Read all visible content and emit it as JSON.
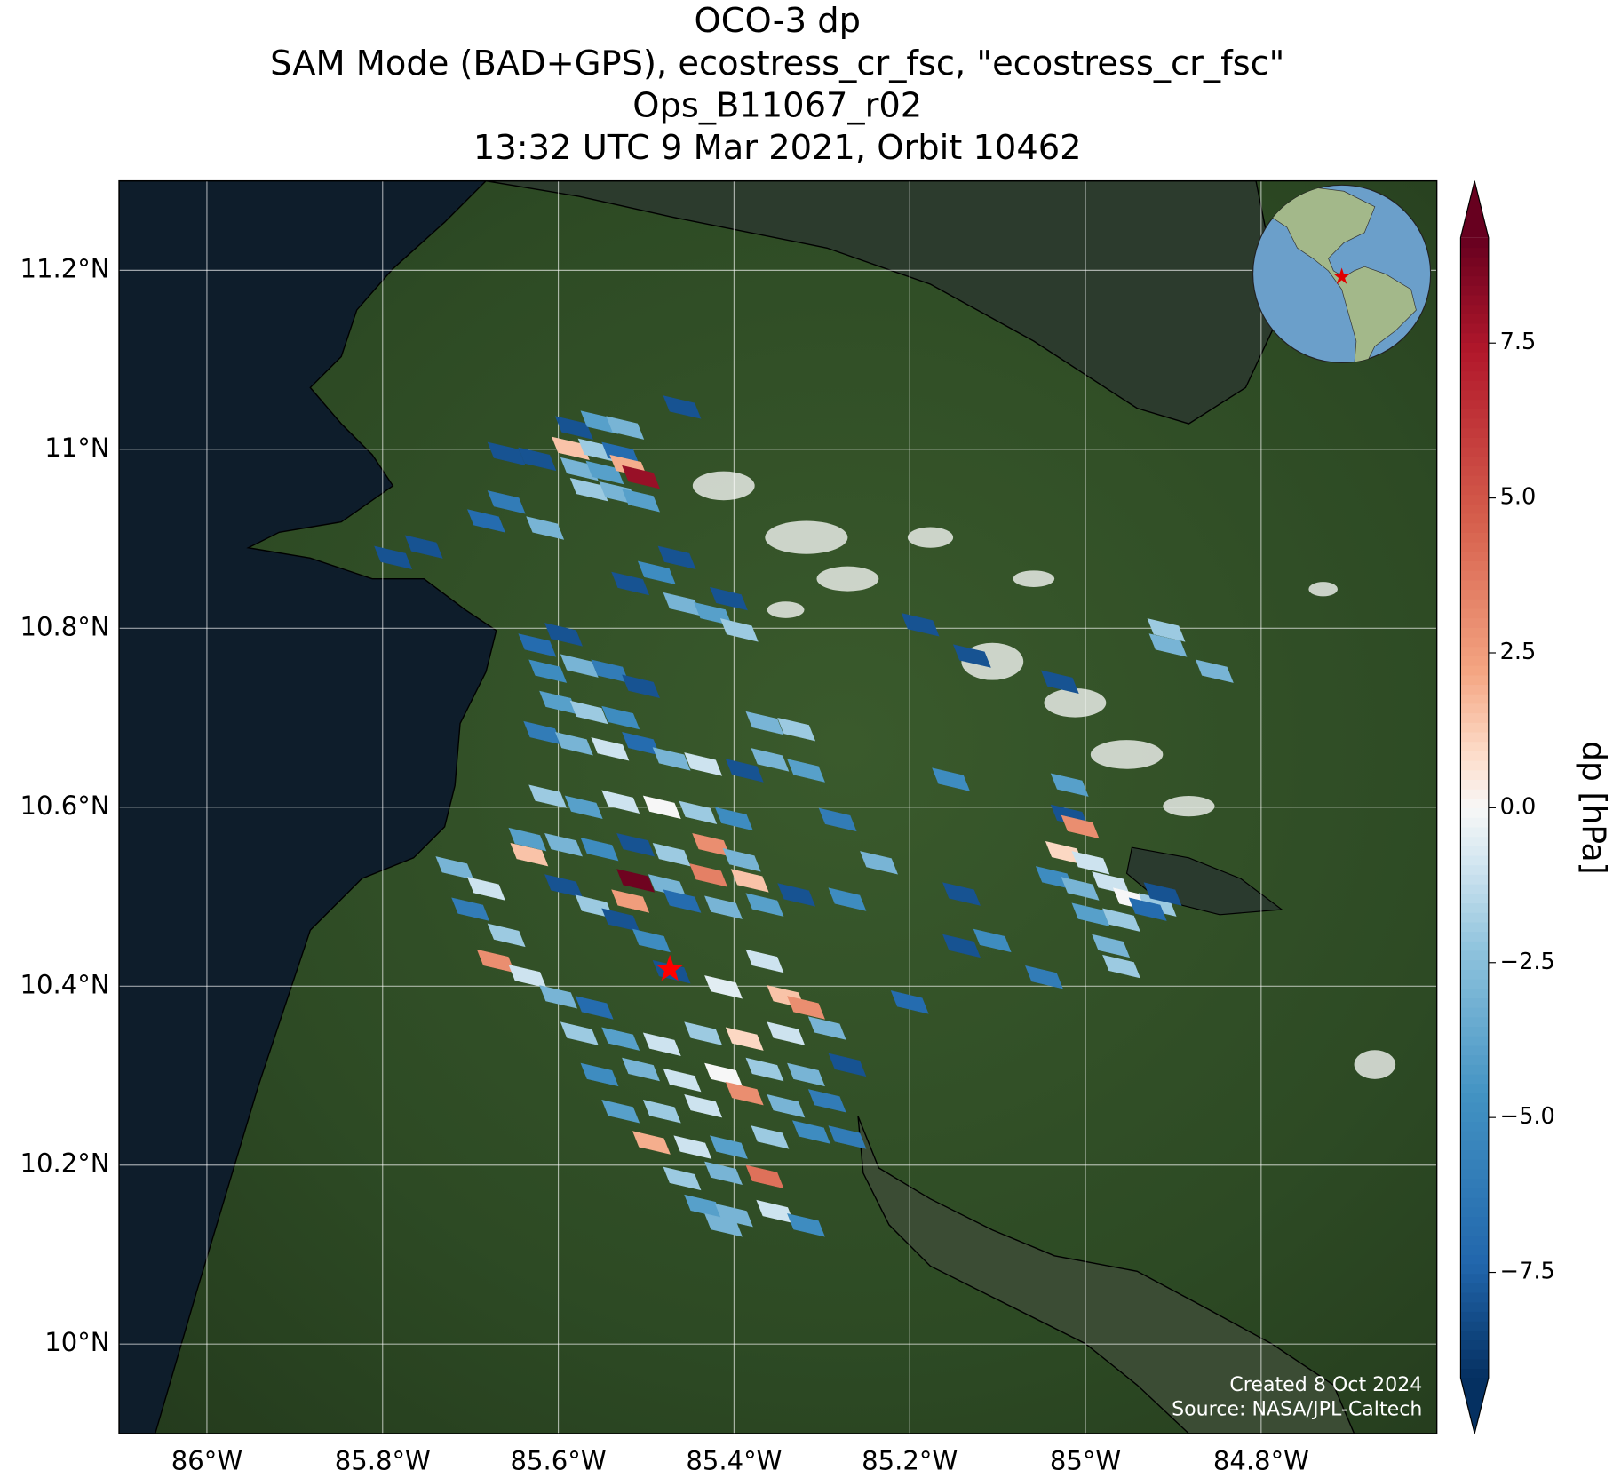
{
  "chart_data": {
    "type": "map",
    "title": [
      "OCO-3 dp",
      "SAM Mode (BAD+GPS), ecostress_cr_fsc, \"ecostress_cr_fsc\"",
      "Ops_B11067_r02",
      "13:32 UTC 9 Mar 2021, Orbit 10462"
    ],
    "xlim": [
      -86.1,
      -84.6
    ],
    "ylim": [
      9.9,
      11.3
    ],
    "xticks": [
      {
        "value": -86,
        "label": "86°W"
      },
      {
        "value": -85.8,
        "label": "85.8°W"
      },
      {
        "value": -85.6,
        "label": "85.6°W"
      },
      {
        "value": -85.4,
        "label": "85.4°W"
      },
      {
        "value": -85.2,
        "label": "85.2°W"
      },
      {
        "value": -85,
        "label": "85°W"
      },
      {
        "value": -84.8,
        "label": "84.8°W"
      }
    ],
    "yticks": [
      {
        "value": 10,
        "label": "10°N"
      },
      {
        "value": 10.2,
        "label": "10.2°N"
      },
      {
        "value": 10.4,
        "label": "10.4°N"
      },
      {
        "value": 10.6,
        "label": "10.6°N"
      },
      {
        "value": 10.8,
        "label": "10.8°N"
      },
      {
        "value": 11,
        "label": "11°N"
      },
      {
        "value": 11.2,
        "label": "11.2°N"
      }
    ],
    "grid": true,
    "soundings": {
      "lon": [
        -85.582,
        -85.553,
        -85.524,
        -85.586,
        -85.556,
        -85.529,
        -85.576,
        -85.547,
        -85.52,
        -85.506,
        -85.565,
        -85.532,
        -85.506,
        -85.624,
        -85.659,
        -85.659,
        -85.682,
        -85.615,
        -85.788,
        -85.753,
        -85.459,
        -85.518,
        -85.488,
        -85.465,
        -85.459,
        -85.424,
        -85.394,
        -85.406,
        -85.624,
        -85.594,
        -85.612,
        -85.576,
        -85.541,
        -85.506,
        -85.6,
        -85.565,
        -85.529,
        -85.618,
        -85.582,
        -85.541,
        -85.506,
        -85.471,
        -85.435,
        -85.365,
        -85.329,
        -85.359,
        -85.318,
        -85.388,
        -85.612,
        -85.571,
        -85.529,
        -85.482,
        -85.441,
        -85.4,
        -85.635,
        -85.594,
        -85.553,
        -85.512,
        -85.471,
        -85.426,
        -85.391,
        -85.633,
        -85.512,
        -85.476,
        -85.429,
        -85.382,
        -85.594,
        -85.559,
        -85.518,
        -85.459,
        -85.412,
        -85.365,
        -85.329,
        -85.718,
        -85.682,
        -85.7,
        -85.659,
        -85.671,
        -85.635,
        -85.6,
        -85.559,
        -85.529,
        -85.494,
        -85.471,
        -85.412,
        -85.365,
        -85.341,
        -85.318,
        -85.576,
        -85.529,
        -85.482,
        -85.435,
        -85.388,
        -85.341,
        -85.294,
        -85.553,
        -85.506,
        -85.459,
        -85.412,
        -85.365,
        -85.318,
        -85.271,
        -85.529,
        -85.482,
        -85.435,
        -85.388,
        -85.341,
        -85.294,
        -85.494,
        -85.447,
        -85.406,
        -85.359,
        -85.312,
        -85.271,
        -85.459,
        -85.412,
        -85.365,
        -85.435,
        -85.4,
        -85.353,
        -85.318,
        -85.412,
        -85.271,
        -85.282,
        -85.235,
        -85.141,
        -85.106,
        -85.141,
        -85.047,
        -85.2,
        -85.188,
        -85.129,
        -85.153,
        -85.029,
        -85.018,
        -85.018,
        -85.006,
        -85.024,
        -84.994,
        -85.035,
        -85.006,
        -84.971,
        -84.947,
        -84.918,
        -84.994,
        -84.959,
        -84.929,
        -84.971,
        -84.959,
        -84.912,
        -84.908,
        -84.906,
        -84.853
      ],
      "lat": [
        11.024,
        11.03,
        11.024,
        11.001,
        10.999,
        10.995,
        10.978,
        10.974,
        10.981,
        10.969,
        10.955,
        10.951,
        10.943,
        10.989,
        10.995,
        10.941,
        10.92,
        10.912,
        10.879,
        10.891,
        11.047,
        10.85,
        10.862,
        10.879,
        10.827,
        10.816,
        10.798,
        10.833,
        10.781,
        10.793,
        10.752,
        10.758,
        10.752,
        10.735,
        10.717,
        10.706,
        10.7,
        10.683,
        10.671,
        10.665,
        10.671,
        10.654,
        10.648,
        10.694,
        10.687,
        10.653,
        10.641,
        10.641,
        10.612,
        10.6,
        10.606,
        10.6,
        10.594,
        10.587,
        10.564,
        10.558,
        10.553,
        10.558,
        10.547,
        10.558,
        10.541,
        10.547,
        10.518,
        10.512,
        10.524,
        10.518,
        10.512,
        10.489,
        10.495,
        10.495,
        10.488,
        10.491,
        10.502,
        10.532,
        10.509,
        10.486,
        10.457,
        10.428,
        10.411,
        10.388,
        10.376,
        10.474,
        10.451,
        10.416,
        10.399,
        10.428,
        10.388,
        10.376,
        10.347,
        10.341,
        10.335,
        10.347,
        10.341,
        10.347,
        10.353,
        10.301,
        10.307,
        10.295,
        10.301,
        10.307,
        10.301,
        10.312,
        10.26,
        10.26,
        10.266,
        10.28,
        10.266,
        10.272,
        10.225,
        10.22,
        10.22,
        10.231,
        10.237,
        10.231,
        10.185,
        10.191,
        10.187,
        10.154,
        10.144,
        10.148,
        10.133,
        10.133,
        10.497,
        10.586,
        10.538,
        10.503,
        10.451,
        10.445,
        10.41,
        10.382,
        10.804,
        10.769,
        10.631,
        10.74,
        10.625,
        10.59,
        10.578,
        10.549,
        10.538,
        10.521,
        10.509,
        10.515,
        10.497,
        10.491,
        10.48,
        10.474,
        10.486,
        10.445,
        10.422,
        10.503,
        10.798,
        10.781,
        10.752
      ],
      "dp": [
        -8,
        -4,
        -3,
        1.5,
        -2,
        -7,
        -3,
        -4,
        2,
        8,
        -2,
        -3,
        -4,
        -8,
        -8,
        -6,
        -7,
        -3,
        -8,
        -8,
        -8,
        -8,
        -5,
        -8,
        -3,
        -4,
        -2,
        -8,
        -7,
        -8,
        -5,
        -3,
        -6,
        -8,
        -4,
        -2,
        -5,
        -6,
        -3,
        -1,
        -7,
        -3,
        -1,
        -3,
        -2,
        -3,
        -4,
        -8,
        -2,
        -4,
        -1,
        0,
        -2,
        -5,
        -4,
        -3,
        -5,
        -8,
        -2,
        3,
        -3,
        1.5,
        9,
        -3,
        3.5,
        1.5,
        -8,
        -2,
        2.5,
        -7,
        -3,
        -4,
        -8,
        -3,
        -1,
        -6,
        -2,
        3,
        -1,
        -3,
        -7,
        -8,
        -5,
        -8,
        -0.5,
        -1,
        1.5,
        3,
        -2,
        -4,
        -1,
        -2,
        1,
        -1,
        -3,
        -5,
        -3,
        -1,
        0,
        -2,
        -3,
        -8,
        -4,
        -2,
        -1,
        3,
        -3,
        -6,
        2,
        -1,
        -4,
        -2,
        -5,
        -6,
        -2,
        -3,
        4,
        -4,
        -3,
        -1,
        -5,
        -3,
        -5,
        -6,
        -3,
        -8,
        -5,
        -8,
        -6,
        -7,
        -8,
        -8,
        -5,
        -8,
        -4,
        -8,
        3,
        1,
        -1,
        -5,
        -3,
        -1,
        0,
        -2,
        -4,
        -2,
        -7,
        -3,
        -2,
        -8,
        -2,
        -3,
        -3
      ]
    },
    "target": {
      "lon": -85.473,
      "lat": 10.419,
      "color": "#ff0000"
    },
    "colorbar": {
      "label": "dp [hPa]",
      "colormap": "RdBu_r",
      "clim": [
        -9.2,
        9.2
      ],
      "ticks": [
        {
          "value": -7.5,
          "label": "−7.5"
        },
        {
          "value": -5,
          "label": "−5.0"
        },
        {
          "value": -2.5,
          "label": "−2.5"
        },
        {
          "value": 0,
          "label": "0.0"
        },
        2.5,
        {
          "value": 5,
          "label": "5.0"
        },
        7.5
      ]
    },
    "credits": [
      "Created 8 Oct 2024",
      "Source: NASA/JPL-Caltech"
    ]
  }
}
